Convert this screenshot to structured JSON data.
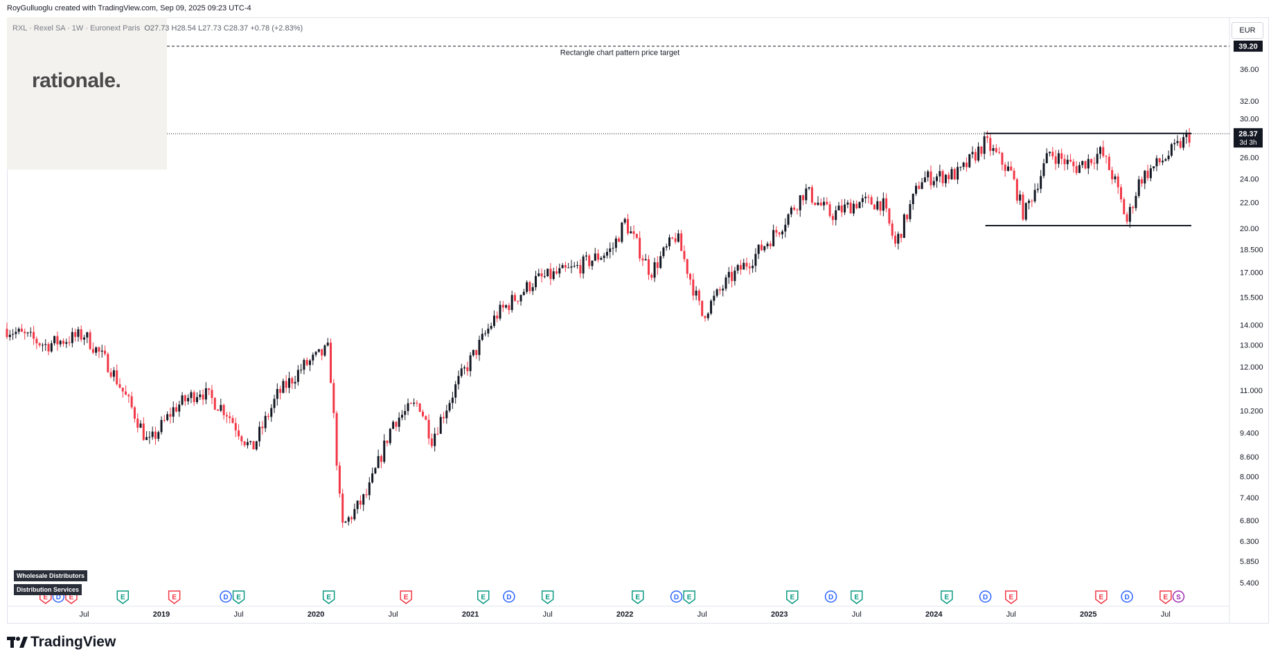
{
  "header": {
    "caption": "RoyGulluoglu created with TradingView.com, Sep 09, 2025 09:23 UTC-4"
  },
  "symbol": {
    "name": "RXL · Rexel SA · 1W · Euronext Paris",
    "open": "O27.73",
    "high": "H28.54",
    "low": "L27.73",
    "close": "C28.37",
    "change": "+0.78 (+2.83%)"
  },
  "watermark": {
    "logo_text": "rationale."
  },
  "currency": "EUR",
  "annotation": {
    "target_label": "Rectangle chart pattern price target"
  },
  "price_tags": {
    "target": "39.20",
    "last": "28.37",
    "countdown": "3d 3h"
  },
  "sector_tags": [
    "Wholesale Distributors",
    "Distribution Services"
  ],
  "branding": {
    "footer_logo": "TradingView"
  },
  "colors": {
    "up": "#131722",
    "down": "#f23645",
    "earnings_badge": "#f23645",
    "earnings_badge_alt": "#089981",
    "dividend_badge": "#2962ff",
    "split_badge": "#9c27b0"
  },
  "chart_data": {
    "type": "candlestick",
    "scale": "log",
    "timeframe": "1W",
    "y_ticks": [
      "36.00",
      "32.00",
      "30.00",
      "26.00",
      "24.00",
      "22.00",
      "20.00",
      "18.500",
      "17.000",
      "15.500",
      "14.000",
      "13.000",
      "12.000",
      "11.000",
      "10.200",
      "9.400",
      "8.600",
      "8.000",
      "7.400",
      "6.800",
      "6.300",
      "5.850",
      "5.400"
    ],
    "y_tick_values": [
      36,
      32,
      30,
      26,
      24,
      22,
      20,
      18.5,
      17,
      15.5,
      14,
      13,
      12,
      11,
      10.2,
      9.4,
      8.6,
      8,
      7.4,
      6.8,
      6.3,
      5.85,
      5.4
    ],
    "x_ticks": [
      "Jul",
      "2019",
      "Jul",
      "2020",
      "Jul",
      "2021",
      "Jul",
      "2022",
      "Jul",
      "2023",
      "Jul",
      "2024",
      "Jul",
      "2025",
      "Jul"
    ],
    "x_tick_dates": [
      "2018-07",
      "2019-01",
      "2019-07",
      "2020-01",
      "2020-07",
      "2021-01",
      "2021-07",
      "2022-01",
      "2022-07",
      "2023-01",
      "2023-07",
      "2024-01",
      "2024-07",
      "2025-01",
      "2025-07"
    ],
    "x_range": [
      "2018-01",
      "2025-09"
    ],
    "price_path": [
      [
        "2018-01",
        13.8
      ],
      [
        "2018-04",
        13.0
      ],
      [
        "2018-07",
        13.5
      ],
      [
        "2018-09",
        12.0
      ],
      [
        "2018-11",
        10.0
      ],
      [
        "2018-12",
        9.0
      ],
      [
        "2019-02",
        10.3
      ],
      [
        "2019-04",
        11.0
      ],
      [
        "2019-06",
        10.2
      ],
      [
        "2019-08",
        8.8
      ],
      [
        "2019-10",
        10.8
      ],
      [
        "2019-12",
        12.0
      ],
      [
        "2020-02",
        12.8
      ],
      [
        "2020-03",
        6.6
      ],
      [
        "2020-05",
        7.5
      ],
      [
        "2020-07",
        9.8
      ],
      [
        "2020-09",
        10.5
      ],
      [
        "2020-10",
        9.2
      ],
      [
        "2020-12",
        11.3
      ],
      [
        "2021-03",
        14.5
      ],
      [
        "2021-06",
        16.5
      ],
      [
        "2021-09",
        17.2
      ],
      [
        "2021-12",
        18.5
      ],
      [
        "2022-01",
        20.5
      ],
      [
        "2022-03",
        17.0
      ],
      [
        "2022-05",
        19.5
      ],
      [
        "2022-07",
        14.5
      ],
      [
        "2022-09",
        16.5
      ],
      [
        "2022-11",
        18.0
      ],
      [
        "2023-01",
        20.0
      ],
      [
        "2023-03",
        23.0
      ],
      [
        "2023-05",
        21.0
      ],
      [
        "2023-07",
        22.0
      ],
      [
        "2023-09",
        22.0
      ],
      [
        "2023-10",
        18.8
      ],
      [
        "2023-12",
        24.0
      ],
      [
        "2024-03",
        24.5
      ],
      [
        "2024-05",
        27.5
      ],
      [
        "2024-07",
        24.5
      ],
      [
        "2024-08",
        21.0
      ],
      [
        "2024-10",
        26.5
      ],
      [
        "2024-12",
        25.0
      ],
      [
        "2025-02",
        26.5
      ],
      [
        "2025-03",
        24.0
      ],
      [
        "2025-04",
        20.5
      ],
      [
        "2025-05",
        24.0
      ],
      [
        "2025-07",
        26.0
      ],
      [
        "2025-09",
        28.37
      ]
    ],
    "lines": [
      {
        "kind": "target",
        "value": 39.2,
        "style": "dashed"
      },
      {
        "kind": "current",
        "value": 28.37,
        "style": "dotted"
      },
      {
        "kind": "resistance",
        "value": 28.4,
        "from": "2024-05",
        "to": "2025-09"
      },
      {
        "kind": "support",
        "value": 20.2,
        "from": "2024-05",
        "to": "2025-09"
      }
    ],
    "event_badges": [
      {
        "letter": "E",
        "date": "2018-04",
        "type": "earnings"
      },
      {
        "letter": "D",
        "date": "2018-05",
        "type": "dividend"
      },
      {
        "letter": "E",
        "date": "2018-06",
        "type": "earnings"
      },
      {
        "letter": "E",
        "date": "2018-10",
        "type": "earnings_alt"
      },
      {
        "letter": "E",
        "date": "2019-02",
        "type": "earnings"
      },
      {
        "letter": "D",
        "date": "2019-06",
        "type": "dividend"
      },
      {
        "letter": "E",
        "date": "2019-07",
        "type": "earnings_alt"
      },
      {
        "letter": "E",
        "date": "2020-02",
        "type": "earnings_alt"
      },
      {
        "letter": "E",
        "date": "2020-08",
        "type": "earnings"
      },
      {
        "letter": "E",
        "date": "2021-02",
        "type": "earnings_alt"
      },
      {
        "letter": "D",
        "date": "2021-04",
        "type": "dividend"
      },
      {
        "letter": "E",
        "date": "2021-07",
        "type": "earnings_alt"
      },
      {
        "letter": "E",
        "date": "2022-02",
        "type": "earnings_alt"
      },
      {
        "letter": "D",
        "date": "2022-05",
        "type": "dividend"
      },
      {
        "letter": "E",
        "date": "2022-06",
        "type": "earnings_alt"
      },
      {
        "letter": "E",
        "date": "2023-02",
        "type": "earnings_alt"
      },
      {
        "letter": "D",
        "date": "2023-05",
        "type": "dividend"
      },
      {
        "letter": "E",
        "date": "2023-07",
        "type": "earnings_alt"
      },
      {
        "letter": "E",
        "date": "2024-02",
        "type": "earnings_alt"
      },
      {
        "letter": "D",
        "date": "2024-05",
        "type": "dividend"
      },
      {
        "letter": "E",
        "date": "2024-07",
        "type": "earnings"
      },
      {
        "letter": "E",
        "date": "2025-02",
        "type": "earnings"
      },
      {
        "letter": "D",
        "date": "2025-04",
        "type": "dividend"
      },
      {
        "letter": "E",
        "date": "2025-07",
        "type": "earnings"
      },
      {
        "letter": "S",
        "date": "2025-08",
        "type": "split"
      }
    ]
  }
}
